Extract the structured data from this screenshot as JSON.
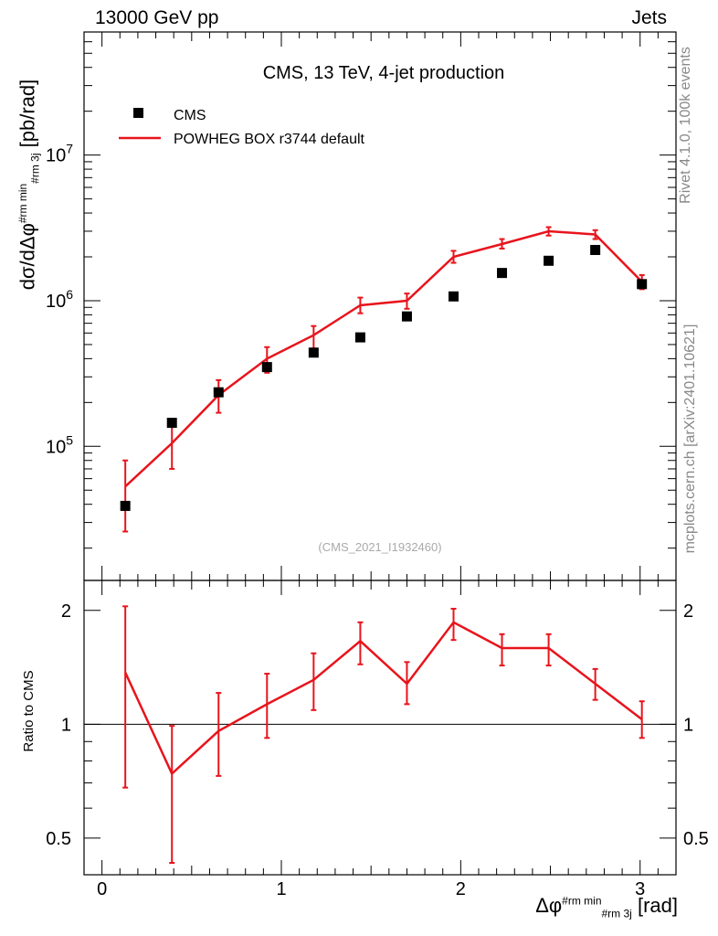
{
  "header": {
    "beam": "13000 GeV pp",
    "process": "Jets"
  },
  "side": {
    "rivet": "Rivet 4.1.0,  100k events",
    "site": "mcplots.cern.ch [arXiv:2401.10621]"
  },
  "plot": {
    "title": "CMS, 13 TeV, 4-jet production",
    "analysis": "(CMS_2021_I1932460)",
    "ylabel_main": "dσ/dΔφ",
    "ylabel_main_sup": "#rm min",
    "ylabel_main_sub": "#rm 3j",
    "ylabel_main_unit": "[pb/rad]",
    "ylabel_ratio": "Ratio to CMS",
    "xlabel": "Δφ",
    "xlabel_sup": "#rm min",
    "xlabel_sub": "#rm 3j",
    "xlabel_unit": "[rad]",
    "legend": {
      "data": "CMS",
      "mc": "POWHEG BOX r3744 default"
    },
    "colors": {
      "mc": "#e8141c",
      "data": "#000000",
      "frame": "#000000"
    }
  },
  "chart_data": [
    {
      "type": "scatter",
      "panel": "main",
      "xlim": [
        -0.1,
        3.2
      ],
      "ylim": [
        12000,
        70000000
      ],
      "yscale": "log",
      "yticks": [
        100000,
        1000000,
        10000000
      ],
      "ytick_labels": [
        "10^5",
        "10^6",
        "10^7"
      ],
      "x": [
        0.13,
        0.39,
        0.65,
        0.92,
        1.18,
        1.44,
        1.7,
        1.96,
        2.23,
        2.49,
        2.75,
        3.01
      ],
      "series": [
        {
          "name": "CMS",
          "marker": "square",
          "values": [
            39000,
            145000,
            235000,
            350000,
            440000,
            560000,
            780000,
            1070000,
            1550000,
            1880000,
            2230000,
            1300000
          ]
        },
        {
          "name": "POWHEG BOX r3744 default",
          "line": true,
          "values": [
            53000,
            105000,
            225000,
            400000,
            580000,
            930000,
            1000000,
            2000000,
            2450000,
            3000000,
            2850000,
            1350000
          ],
          "err_low": [
            26000,
            70000,
            170000,
            320000,
            470000,
            820000,
            880000,
            1820000,
            2280000,
            2800000,
            2650000,
            1200000
          ],
          "err_high": [
            80000,
            148000,
            285000,
            480000,
            670000,
            1050000,
            1120000,
            2200000,
            2650000,
            3200000,
            3050000,
            1500000
          ]
        }
      ]
    },
    {
      "type": "line",
      "panel": "ratio",
      "xlim": [
        -0.1,
        3.2
      ],
      "ylim": [
        0.4,
        2.4
      ],
      "yscale": "log",
      "yticks": [
        0.5,
        1,
        2
      ],
      "ytick_labels": [
        "0.5",
        "1",
        "2"
      ],
      "xticks": [
        0,
        1,
        2,
        3
      ],
      "xtick_labels": [
        "0",
        "1",
        "2",
        "3"
      ],
      "x": [
        0.13,
        0.39,
        0.65,
        0.92,
        1.18,
        1.44,
        1.7,
        1.96,
        2.23,
        2.49,
        2.75,
        3.01
      ],
      "series": [
        {
          "name": "POWHEG BOX r3744 default",
          "values": [
            1.37,
            0.74,
            0.96,
            1.13,
            1.31,
            1.66,
            1.28,
            1.86,
            1.59,
            1.59,
            1.28,
            1.03
          ],
          "err_low": [
            0.68,
            0.43,
            0.73,
            0.92,
            1.09,
            1.44,
            1.13,
            1.67,
            1.43,
            1.43,
            1.16,
            0.92
          ],
          "err_high": [
            2.05,
            0.99,
            1.21,
            1.36,
            1.54,
            1.86,
            1.46,
            2.02,
            1.73,
            1.73,
            1.4,
            1.15
          ]
        }
      ]
    }
  ]
}
